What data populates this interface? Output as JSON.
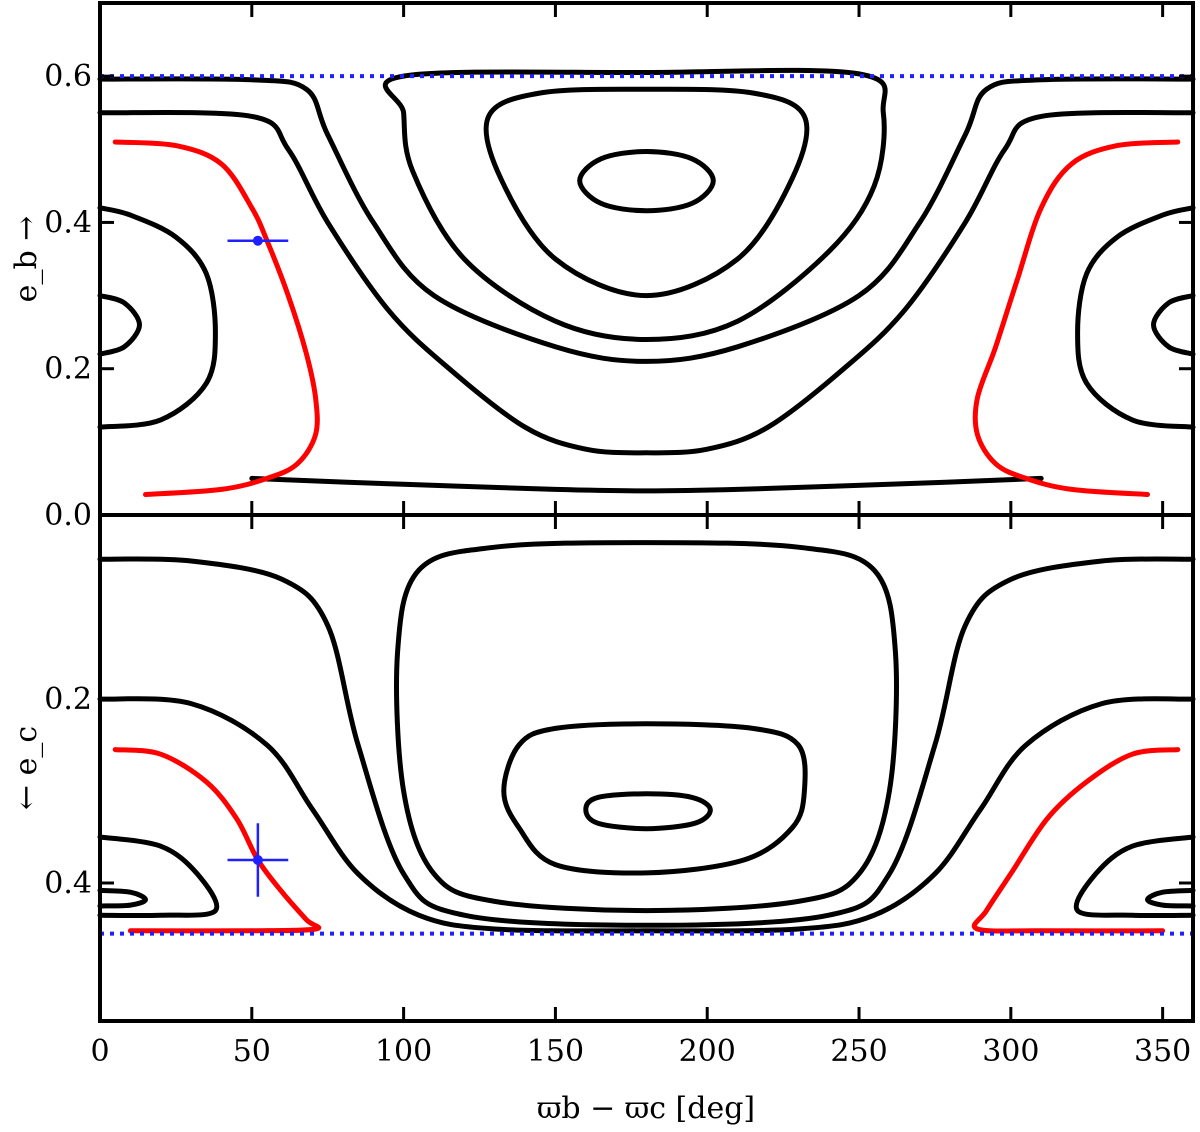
{
  "chart_data": [
    {
      "type": "line",
      "panel": "top",
      "xlabel": "ϖb − ϖc [deg]",
      "ylabel": "e_b →",
      "xlim": [
        0,
        360
      ],
      "ylim": [
        0.0,
        0.7
      ],
      "y_ticks": [
        0.0,
        0.2,
        0.4,
        0.6
      ],
      "y_tick_labels": [
        "0.0",
        "0.2",
        "0.4",
        "0.6"
      ],
      "reference_line": {
        "y": 0.6,
        "color": "#1f1fff",
        "style": "dotted"
      },
      "point": {
        "x": 52,
        "y": 0.375,
        "xerr": 10,
        "yerr": 0.0,
        "color": "#1f1fff"
      },
      "contours": [
        {
          "color": "#000000",
          "closed": true,
          "points": [
            [
              180,
              0.497
            ],
            [
              195,
              0.487
            ],
            [
              202,
              0.457
            ],
            [
              195,
              0.426
            ],
            [
              180,
              0.416
            ],
            [
              165,
              0.426
            ],
            [
              158,
              0.457
            ],
            [
              165,
              0.487
            ]
          ]
        },
        {
          "color": "#000000",
          "closed": true,
          "points": [
            [
              180,
              0.582
            ],
            [
              215,
              0.577
            ],
            [
              232,
              0.545
            ],
            [
              228,
              0.46
            ],
            [
              210,
              0.35
            ],
            [
              180,
              0.3
            ],
            [
              150,
              0.35
            ],
            [
              132,
              0.46
            ],
            [
              128,
              0.545
            ],
            [
              145,
              0.577
            ]
          ]
        },
        {
          "color": "#000000",
          "closed": true,
          "points": [
            [
              100,
              0.6
            ],
            [
              180,
              0.605
            ],
            [
              250,
              0.603
            ],
            [
              258,
              0.55
            ],
            [
              255,
              0.45
            ],
            [
              240,
              0.36
            ],
            [
              210,
              0.265
            ],
            [
              180,
              0.24
            ],
            [
              150,
              0.265
            ],
            [
              120,
              0.35
            ],
            [
              103,
              0.47
            ],
            [
              100,
              0.55
            ]
          ]
        },
        {
          "color": "#000000",
          "closed": false,
          "points": [
            [
              0,
              0.596
            ],
            [
              50,
              0.595
            ],
            [
              68,
              0.582
            ],
            [
              75,
              0.52
            ],
            [
              90,
              0.4
            ],
            [
              110,
              0.3
            ],
            [
              150,
              0.23
            ],
            [
              180,
              0.21
            ],
            [
              210,
              0.23
            ],
            [
              250,
              0.3
            ],
            [
              270,
              0.4
            ],
            [
              285,
              0.52
            ],
            [
              292,
              0.582
            ],
            [
              310,
              0.595
            ],
            [
              360,
              0.596
            ]
          ]
        },
        {
          "color": "#000000",
          "closed": false,
          "points": [
            [
              0,
              0.55
            ],
            [
              50,
              0.545
            ],
            [
              62,
              0.5
            ],
            [
              75,
              0.4
            ],
            [
              95,
              0.28
            ],
            [
              115,
              0.2
            ],
            [
              140,
              0.12
            ],
            [
              160,
              0.09
            ],
            [
              180,
              0.085
            ],
            [
              200,
              0.09
            ],
            [
              220,
              0.12
            ],
            [
              245,
              0.2
            ],
            [
              265,
              0.28
            ],
            [
              285,
              0.4
            ],
            [
              298,
              0.5
            ],
            [
              310,
              0.545
            ],
            [
              360,
              0.55
            ]
          ]
        },
        {
          "color": "#000000",
          "closed": false,
          "points": [
            [
              0,
              0.12
            ],
            [
              20,
              0.13
            ],
            [
              35,
              0.18
            ],
            [
              38,
              0.25
            ],
            [
              35,
              0.33
            ],
            [
              25,
              0.38
            ],
            [
              10,
              0.41
            ],
            [
              0,
              0.42
            ]
          ]
        },
        {
          "color": "#000000",
          "closed": false,
          "points": [
            [
              360,
              0.12
            ],
            [
              340,
              0.13
            ],
            [
              325,
              0.18
            ],
            [
              322,
              0.25
            ],
            [
              325,
              0.33
            ],
            [
              335,
              0.38
            ],
            [
              350,
              0.41
            ],
            [
              360,
              0.42
            ]
          ]
        },
        {
          "color": "#000000",
          "closed": false,
          "points": [
            [
              0,
              0.22
            ],
            [
              8,
              0.23
            ],
            [
              13,
              0.26
            ],
            [
              8,
              0.29
            ],
            [
              0,
              0.3
            ]
          ]
        },
        {
          "color": "#000000",
          "closed": false,
          "points": [
            [
              360,
              0.22
            ],
            [
              352,
              0.23
            ],
            [
              347,
              0.26
            ],
            [
              352,
              0.29
            ],
            [
              360,
              0.3
            ]
          ]
        },
        {
          "color": "#000000",
          "closed": false,
          "points": [
            [
              50,
              0.05
            ],
            [
              100,
              0.042
            ],
            [
              150,
              0.035
            ],
            [
              180,
              0.033
            ],
            [
              210,
              0.035
            ],
            [
              260,
              0.042
            ],
            [
              310,
              0.05
            ]
          ]
        },
        {
          "color": "#ff0000",
          "closed": false,
          "points": [
            [
              5,
              0.51
            ],
            [
              25,
              0.505
            ],
            [
              40,
              0.48
            ],
            [
              50,
              0.42
            ],
            [
              55,
              0.375
            ],
            [
              62,
              0.3
            ],
            [
              68,
              0.22
            ],
            [
              71,
              0.16
            ],
            [
              71,
              0.11
            ],
            [
              65,
              0.07
            ],
            [
              55,
              0.05
            ],
            [
              40,
              0.035
            ],
            [
              15,
              0.028
            ]
          ]
        },
        {
          "color": "#ff0000",
          "closed": false,
          "points": [
            [
              355,
              0.51
            ],
            [
              335,
              0.505
            ],
            [
              320,
              0.48
            ],
            [
              310,
              0.42
            ],
            [
              302,
              0.32
            ],
            [
              295,
              0.23
            ],
            [
              289,
              0.16
            ],
            [
              289,
              0.11
            ],
            [
              295,
              0.07
            ],
            [
              305,
              0.05
            ],
            [
              320,
              0.035
            ],
            [
              345,
              0.028
            ]
          ]
        }
      ]
    },
    {
      "type": "line",
      "panel": "bottom",
      "xlabel": "ϖb − ϖc [deg]",
      "ylabel": "← e_c",
      "xlim": [
        0,
        360
      ],
      "ylim": [
        0.55,
        0.0
      ],
      "y_ticks": [
        0.2,
        0.4
      ],
      "y_tick_labels": [
        "0.2",
        "0.4"
      ],
      "x_ticks": [
        0,
        50,
        100,
        150,
        200,
        250,
        300,
        350
      ],
      "x_tick_labels": [
        "0",
        "50",
        "100",
        "150",
        "200",
        "250",
        "300",
        "350"
      ],
      "reference_line": {
        "y": 0.455,
        "color": "#1f1fff",
        "style": "dotted"
      },
      "point": {
        "x": 52,
        "y": 0.375,
        "xerr": 10,
        "yerr": 0.04,
        "color": "#1f1fff"
      },
      "contours": [
        {
          "color": "#000000",
          "closed": true,
          "points": [
            [
              180,
              0.303
            ],
            [
              195,
              0.307
            ],
            [
              201,
              0.32
            ],
            [
              196,
              0.335
            ],
            [
              180,
              0.341
            ],
            [
              164,
              0.335
            ],
            [
              160,
              0.32
            ],
            [
              164,
              0.307
            ]
          ]
        },
        {
          "color": "#000000",
          "closed": true,
          "points": [
            [
              180,
              0.227
            ],
            [
              215,
              0.232
            ],
            [
              230,
              0.25
            ],
            [
              232,
              0.3
            ],
            [
              228,
              0.34
            ],
            [
              212,
              0.375
            ],
            [
              180,
              0.389
            ],
            [
              150,
              0.38
            ],
            [
              138,
              0.34
            ],
            [
              133,
              0.3
            ],
            [
              138,
              0.25
            ],
            [
              150,
              0.232
            ]
          ]
        },
        {
          "color": "#000000",
          "closed": true,
          "points": [
            [
              180,
              0.03
            ],
            [
              230,
              0.035
            ],
            [
              255,
              0.06
            ],
            [
              262,
              0.15
            ],
            [
              260,
              0.3
            ],
            [
              250,
              0.39
            ],
            [
              230,
              0.42
            ],
            [
              180,
              0.43
            ],
            [
              130,
              0.42
            ],
            [
              110,
              0.39
            ],
            [
              100,
              0.3
            ],
            [
              98,
              0.15
            ],
            [
              105,
              0.06
            ],
            [
              130,
              0.035
            ]
          ]
        },
        {
          "color": "#000000",
          "closed": false,
          "points": [
            [
              0,
              0.048
            ],
            [
              30,
              0.05
            ],
            [
              60,
              0.07
            ],
            [
              75,
              0.12
            ],
            [
              85,
              0.25
            ],
            [
              100,
              0.39
            ],
            [
              120,
              0.435
            ],
            [
              180,
              0.446
            ],
            [
              240,
              0.435
            ],
            [
              260,
              0.39
            ],
            [
              275,
              0.25
            ],
            [
              285,
              0.12
            ],
            [
              300,
              0.07
            ],
            [
              330,
              0.05
            ],
            [
              360,
              0.048
            ]
          ]
        },
        {
          "color": "#000000",
          "closed": false,
          "points": [
            [
              0,
              0.2
            ],
            [
              30,
              0.205
            ],
            [
              55,
              0.25
            ],
            [
              70,
              0.32
            ],
            [
              85,
              0.39
            ],
            [
              105,
              0.435
            ],
            [
              130,
              0.45
            ],
            [
              180,
              0.452
            ],
            [
              230,
              0.45
            ],
            [
              255,
              0.435
            ],
            [
              275,
              0.39
            ],
            [
              290,
              0.32
            ],
            [
              305,
              0.25
            ],
            [
              330,
              0.205
            ],
            [
              360,
              0.2
            ]
          ]
        },
        {
          "color": "#000000",
          "closed": false,
          "points": [
            [
              0,
              0.35
            ],
            [
              20,
              0.36
            ],
            [
              32,
              0.39
            ],
            [
              38,
              0.43
            ],
            [
              20,
              0.435
            ],
            [
              0,
              0.435
            ]
          ]
        },
        {
          "color": "#000000",
          "closed": false,
          "points": [
            [
              360,
              0.35
            ],
            [
              340,
              0.36
            ],
            [
              328,
              0.39
            ],
            [
              322,
              0.43
            ],
            [
              340,
              0.435
            ],
            [
              360,
              0.435
            ]
          ]
        },
        {
          "color": "#000000",
          "closed": false,
          "points": [
            [
              0,
              0.408
            ],
            [
              10,
              0.41
            ],
            [
              15,
              0.418
            ],
            [
              10,
              0.424
            ],
            [
              0,
              0.425
            ]
          ]
        },
        {
          "color": "#000000",
          "closed": false,
          "points": [
            [
              360,
              0.408
            ],
            [
              350,
              0.41
            ],
            [
              345,
              0.418
            ],
            [
              350,
              0.424
            ],
            [
              360,
              0.425
            ]
          ]
        },
        {
          "color": "#ff0000",
          "closed": false,
          "points": [
            [
              5,
              0.255
            ],
            [
              20,
              0.26
            ],
            [
              35,
              0.29
            ],
            [
              45,
              0.33
            ],
            [
              52,
              0.375
            ],
            [
              60,
              0.41
            ],
            [
              68,
              0.44
            ],
            [
              71,
              0.45
            ],
            [
              50,
              0.452
            ],
            [
              10,
              0.452
            ]
          ]
        },
        {
          "color": "#ff0000",
          "closed": false,
          "points": [
            [
              355,
              0.255
            ],
            [
              340,
              0.26
            ],
            [
              325,
              0.29
            ],
            [
              312,
              0.33
            ],
            [
              300,
              0.39
            ],
            [
              292,
              0.43
            ],
            [
              289,
              0.45
            ],
            [
              310,
              0.452
            ],
            [
              350,
              0.452
            ]
          ]
        }
      ]
    }
  ]
}
